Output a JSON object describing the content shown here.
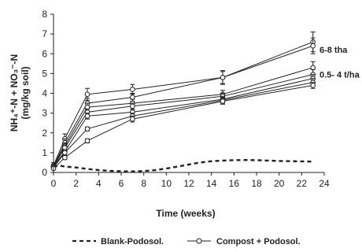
{
  "chart_data": {
    "type": "line",
    "xlabel": "Time (weeks)",
    "ylabel_line1": "NH₄⁺-N + NO₃⁻-N",
    "ylabel_line2": "(mg/kg soil)",
    "xlim": [
      0,
      24
    ],
    "ylim": [
      0,
      8
    ],
    "xticks": [
      0,
      2,
      4,
      6,
      8,
      10,
      12,
      14,
      16,
      18,
      20,
      22,
      24
    ],
    "yticks": [
      0,
      1,
      2,
      3,
      4,
      5,
      6,
      7,
      8
    ],
    "grid": false,
    "legend": {
      "placement": "bottom",
      "entries": [
        {
          "label": "Blank-Podosol.",
          "style": "dashed"
        },
        {
          "label": "Compost + Podosol.",
          "style": "solid-circle"
        }
      ]
    },
    "annotations": [
      {
        "text": "6-8 tha",
        "x": 23.3,
        "y": 6.2
      },
      {
        "text": "0.5- 4 t/ha",
        "x": 23.3,
        "y": 4.95
      }
    ],
    "blank_series": {
      "name": "Blank-Podosol.",
      "x": [
        0,
        0.5,
        1,
        2,
        3,
        4,
        5,
        6,
        7,
        8,
        9,
        10,
        11,
        12,
        13,
        14,
        15,
        16,
        17,
        18,
        19,
        20,
        21,
        22,
        23
      ],
      "y": [
        0.3,
        0.35,
        0.3,
        0.25,
        0.18,
        0.12,
        0.08,
        0.06,
        0.05,
        0.07,
        0.12,
        0.2,
        0.3,
        0.4,
        0.5,
        0.57,
        0.6,
        0.62,
        0.63,
        0.62,
        0.6,
        0.58,
        0.57,
        0.56,
        0.55
      ]
    },
    "series": [
      {
        "x": [
          0,
          1,
          3,
          7,
          15,
          23
        ],
        "y": [
          0.35,
          1.7,
          3.95,
          4.2,
          4.8,
          6.6
        ],
        "err": [
          0.15,
          0.25,
          0.3,
          0.25,
          0.35,
          0.5
        ]
      },
      {
        "x": [
          0,
          1,
          3,
          7,
          15,
          23
        ],
        "y": [
          0.3,
          1.5,
          3.5,
          3.8,
          4.8,
          6.4
        ],
        "err": [
          0.1,
          0.2,
          0.25,
          0.2,
          0.3,
          0.4
        ]
      },
      {
        "x": [
          0,
          1,
          3,
          7,
          15,
          23
        ],
        "y": [
          0.3,
          1.35,
          3.3,
          3.5,
          3.95,
          5.3
        ],
        "err": [
          0.1,
          0.15,
          0.2,
          0.2,
          0.2,
          0.3
        ]
      },
      {
        "x": [
          0,
          1,
          3,
          7,
          15,
          23
        ],
        "y": [
          0.3,
          1.25,
          3.05,
          3.35,
          3.85,
          4.95
        ],
        "err": [
          0.1,
          0.15,
          0.15,
          0.15,
          0.15,
          0.25
        ]
      },
      {
        "x": [
          0,
          1,
          3,
          7,
          15,
          23
        ],
        "y": [
          0.3,
          1.05,
          2.85,
          3.05,
          3.7,
          4.75
        ],
        "err": [
          0.1,
          0.1,
          0.15,
          0.15,
          0.15,
          0.2
        ]
      },
      {
        "x": [
          0,
          1,
          3,
          7,
          15,
          23
        ],
        "y": [
          0.25,
          1.0,
          2.2,
          2.85,
          3.65,
          4.55
        ],
        "err": [
          0.1,
          0.1,
          0.1,
          0.15,
          0.15,
          0.2
        ]
      },
      {
        "x": [
          0,
          1,
          3,
          7,
          15,
          23
        ],
        "y": [
          0.2,
          0.75,
          1.6,
          2.7,
          3.6,
          4.4
        ],
        "err": [
          0.05,
          0.1,
          0.1,
          0.15,
          0.15,
          0.15
        ]
      }
    ]
  }
}
